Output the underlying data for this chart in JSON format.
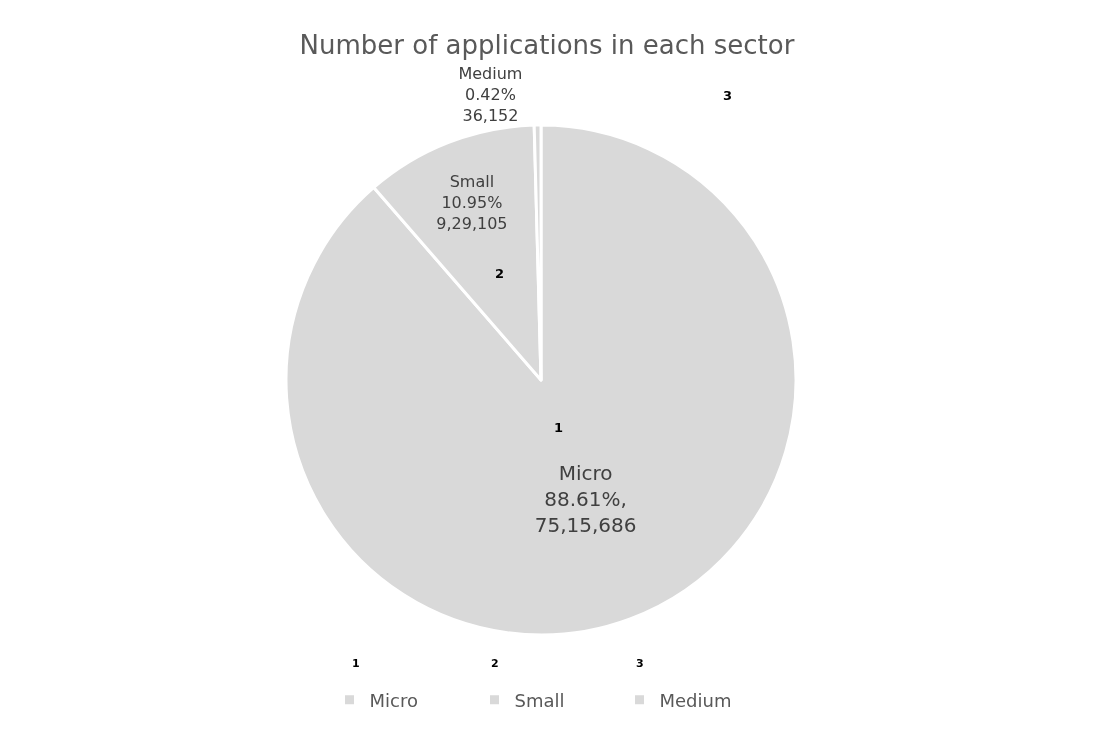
{
  "chart_data": {
    "type": "pie",
    "title": "Number of applications in each sector",
    "categories": [
      "Micro",
      "Small",
      "Medium"
    ],
    "values": [
      7515686,
      929105,
      36152
    ],
    "colors": [
      "#d9d9d9",
      "#d9d9d9",
      "#d9d9d9"
    ],
    "value_labels": [
      "Micro\n88.61%,\n75,15,686",
      "Small\n10.95%\n9,29,105",
      "Medium\n0.42%\n36,152"
    ],
    "annotations": [
      "1",
      "2",
      "3"
    ],
    "legend": "bottom"
  }
}
